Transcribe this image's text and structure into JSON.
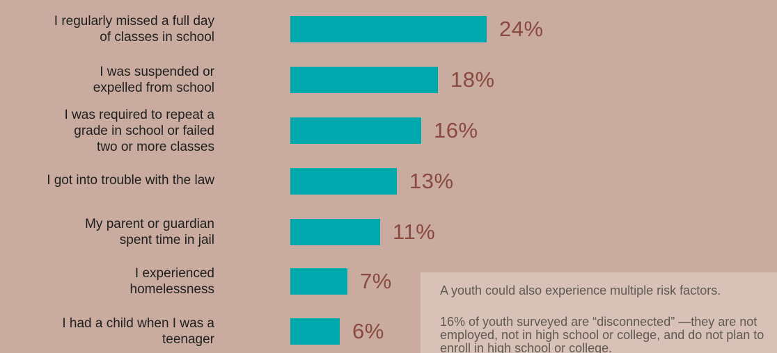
{
  "chart_data": {
    "type": "bar",
    "orientation": "horizontal",
    "categories": [
      "I regularly missed a full day of classes in school",
      "I was suspended or expelled from school",
      "I was required to repeat a grade in school or failed two or more classes",
      "I got into trouble with the law",
      "My parent or guardian spent time in jail",
      "I experienced homelessness",
      "I had a child when I was a teenager"
    ],
    "label_lines": [
      [
        "I regularly missed a full day",
        "of classes in school"
      ],
      [
        "I was suspended or",
        "expelled from school"
      ],
      [
        "I was required to repeat a",
        "grade in school or failed",
        "two or more classes"
      ],
      [
        "I got into trouble with the law"
      ],
      [
        "My parent or guardian",
        "spent time in jail"
      ],
      [
        "I experienced",
        "homelessness"
      ],
      [
        "I had a child when I was a",
        "teenager"
      ]
    ],
    "values": [
      24,
      18,
      16,
      13,
      11,
      7,
      6
    ],
    "value_labels": [
      "24%",
      "18%",
      "16%",
      "13%",
      "11%",
      "7%",
      "6%"
    ],
    "title": "",
    "xlabel": "",
    "ylabel": "",
    "xlim": [
      0,
      24
    ],
    "grid": false,
    "legend": "none",
    "colors": {
      "bar": "#00a9ad",
      "value_text": "#8b4a3f",
      "background": "#c9ac9f"
    }
  },
  "callout": {
    "line1": "A youth could also experience multiple risk factors.",
    "line2": "16% of youth surveyed are “disconnected” —they are not employed, not in high school or college, and do not plan to enroll in high school or college."
  }
}
